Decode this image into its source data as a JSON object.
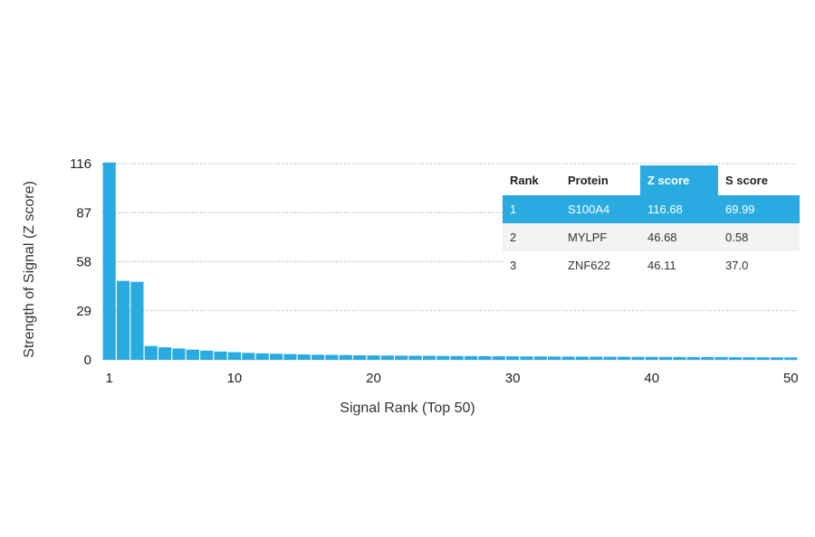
{
  "chart_data": {
    "type": "bar",
    "xlabel": "Signal Rank (Top 50)",
    "ylabel": "Strength of Signal (Z score)",
    "ylim": [
      0,
      116
    ],
    "yticks": [
      0,
      29,
      58,
      87,
      116
    ],
    "xticks": [
      1,
      10,
      20,
      30,
      40,
      50
    ],
    "grid": true,
    "colors": {
      "bar": "#29abe2",
      "highlight": "#29abe2"
    },
    "x": [
      1,
      2,
      3,
      4,
      5,
      6,
      7,
      8,
      9,
      10,
      11,
      12,
      13,
      14,
      15,
      16,
      17,
      18,
      19,
      20,
      21,
      22,
      23,
      24,
      25,
      26,
      27,
      28,
      29,
      30,
      31,
      32,
      33,
      34,
      35,
      36,
      37,
      38,
      39,
      40,
      41,
      42,
      43,
      44,
      45,
      46,
      47,
      48,
      49,
      50
    ],
    "values": [
      116.68,
      46.68,
      46.11,
      8.2,
      7.4,
      6.7,
      6.0,
      5.4,
      4.9,
      4.5,
      4.1,
      3.8,
      3.6,
      3.4,
      3.2,
      3.0,
      2.9,
      2.8,
      2.7,
      2.6,
      2.5,
      2.45,
      2.4,
      2.35,
      2.3,
      2.25,
      2.2,
      2.15,
      2.1,
      2.05,
      2.0,
      1.97,
      1.94,
      1.91,
      1.88,
      1.85,
      1.82,
      1.79,
      1.76,
      1.73,
      1.7,
      1.67,
      1.64,
      1.61,
      1.58,
      1.55,
      1.52,
      1.49,
      1.46,
      1.43
    ]
  },
  "table": {
    "headers": [
      "Rank",
      "Protein",
      "Z score",
      "S score"
    ],
    "rows": [
      [
        "1",
        "S100A4",
        "116.68",
        "69.99"
      ],
      [
        "2",
        "MYLPF",
        "46.68",
        "0.58"
      ],
      [
        "3",
        "ZNF622",
        "46.11",
        "37.0"
      ]
    ]
  }
}
